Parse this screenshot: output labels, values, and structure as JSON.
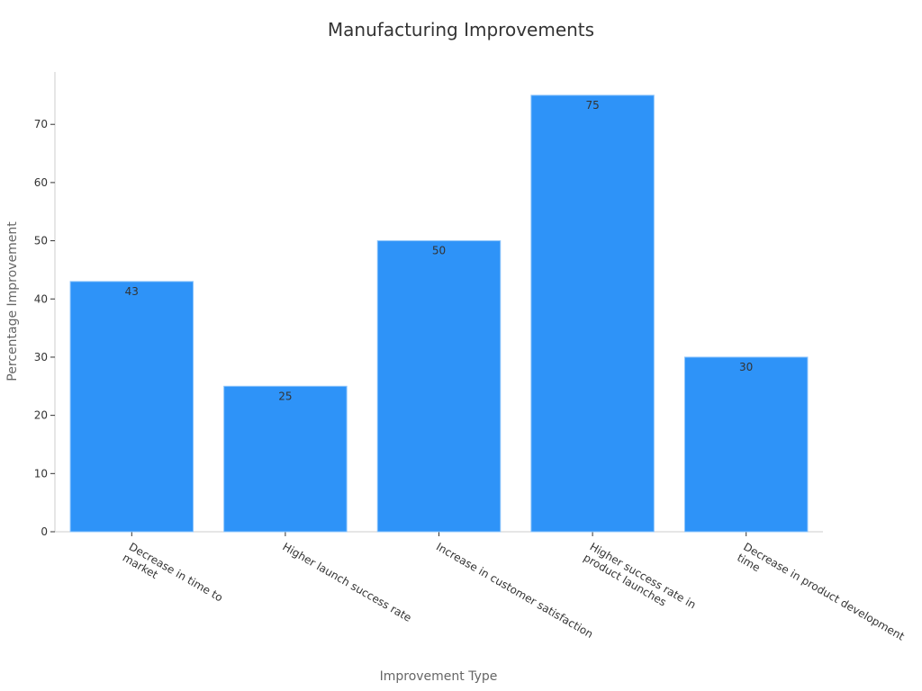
{
  "chart_data": {
    "type": "bar",
    "title": "Manufacturing Improvements",
    "xlabel": "Improvement Type",
    "ylabel": "Percentage Improvement",
    "categories": [
      [
        "Decrease in time to",
        "market"
      ],
      [
        "Higher launch success rate"
      ],
      [
        "Increase in customer satisfaction"
      ],
      [
        "Higher success rate in",
        "product launches"
      ],
      [
        "Decrease in product development",
        "time"
      ]
    ],
    "values": [
      43,
      25,
      50,
      75,
      30
    ],
    "ylim": [
      0,
      79
    ],
    "yticks": [
      0,
      10,
      20,
      30,
      40,
      50,
      60,
      70
    ],
    "grid": false,
    "legend": "none",
    "bar_color": "#2e93f8",
    "bar_edge_color": "#8ec5fb",
    "label_color": "#333333"
  }
}
